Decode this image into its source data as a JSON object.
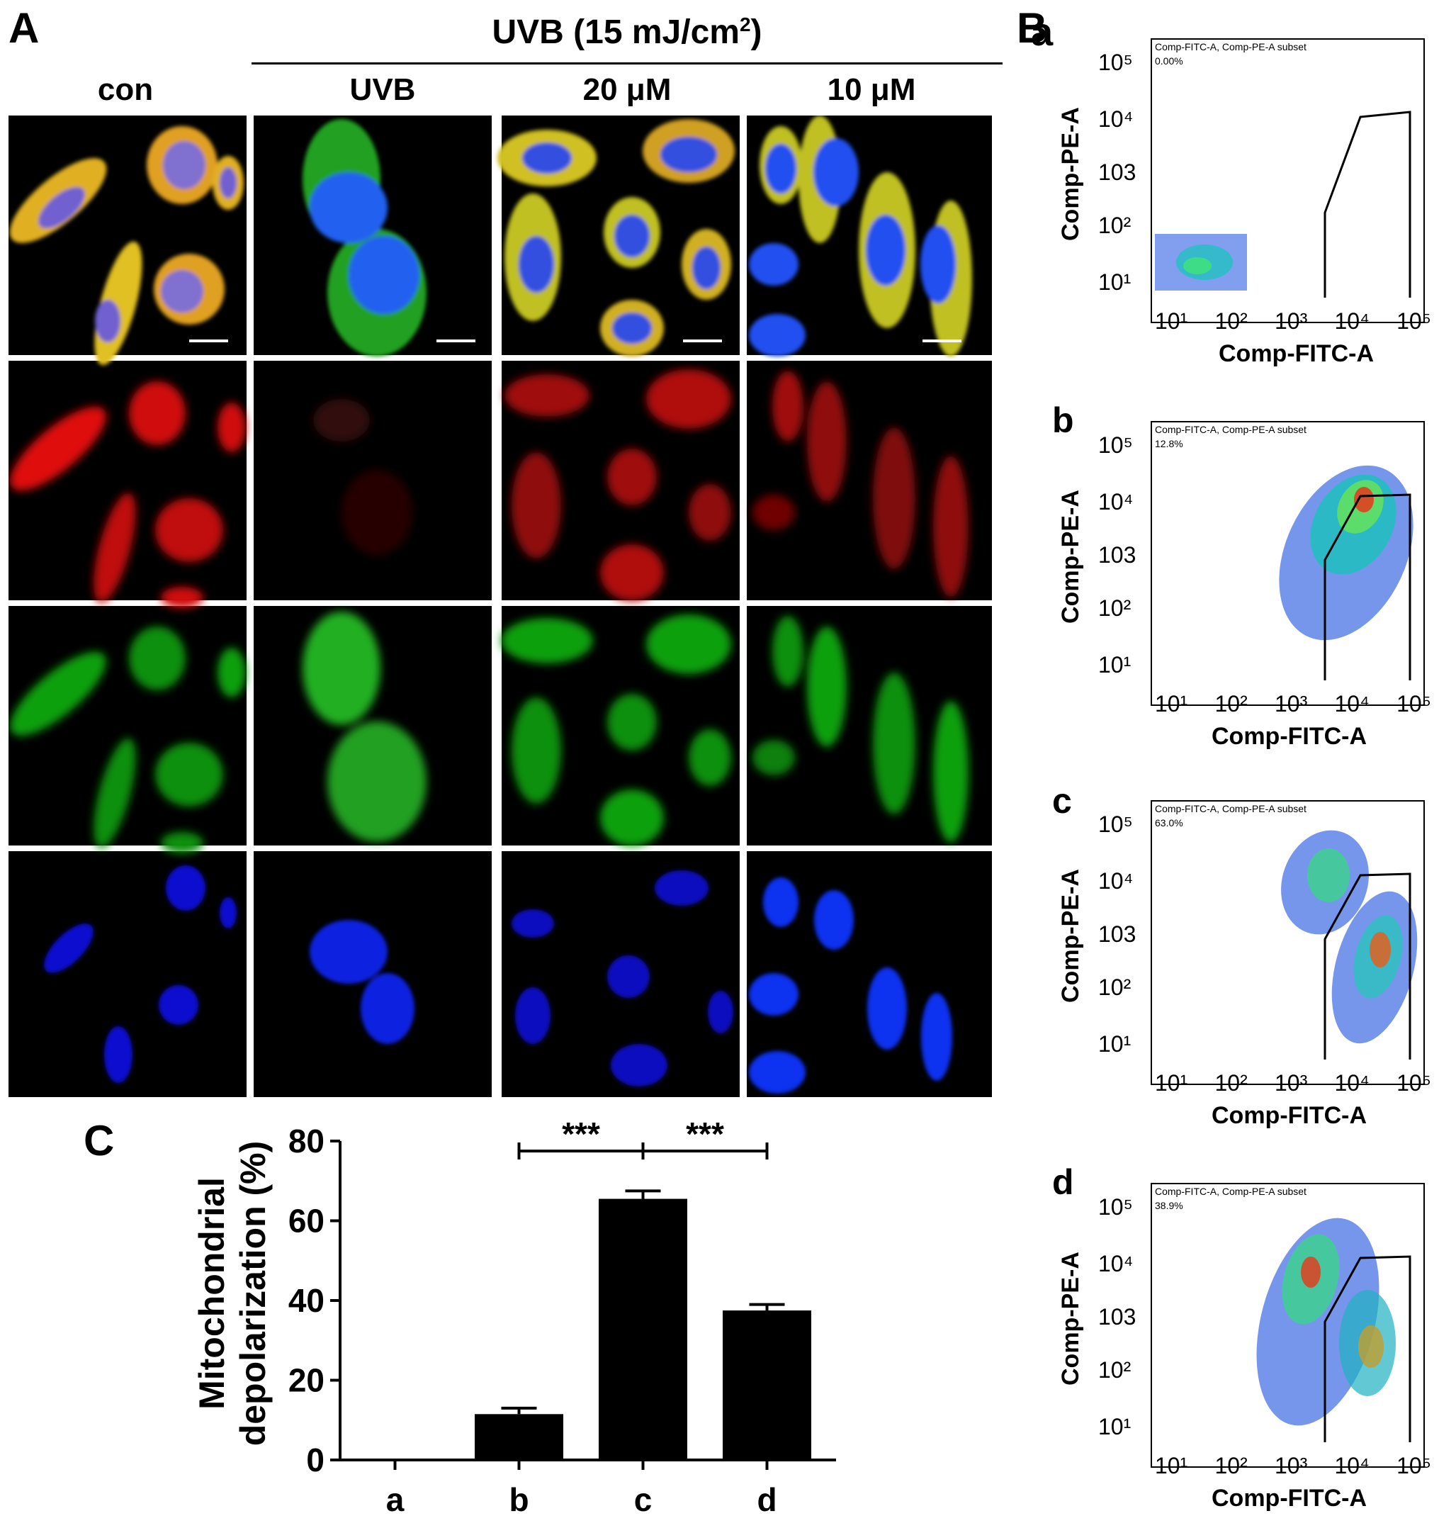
{
  "panel_A": {
    "letter": "A",
    "treatment_header": "UVB (15 mJ/cm",
    "treatment_sup": "2",
    "treatment_close": ")",
    "columns": [
      "con",
      "UVB",
      "20 μM",
      "10 μM"
    ],
    "rows": [
      "merge",
      "red",
      "green",
      "blue"
    ]
  },
  "panel_B": {
    "letter": "B",
    "plots": [
      {
        "sub": "a",
        "gate_title": "Comp-FITC-A, Comp-PE-A subset",
        "percent": "0.00%"
      },
      {
        "sub": "b",
        "gate_title": "Comp-FITC-A, Comp-PE-A subset",
        "percent": "12.8%"
      },
      {
        "sub": "c",
        "gate_title": "Comp-FITC-A, Comp-PE-A subset",
        "percent": "63.0%"
      },
      {
        "sub": "d",
        "gate_title": "Comp-FITC-A, Comp-PE-A subset",
        "percent": "38.9%"
      }
    ],
    "xlabel": "Comp-FITC-A",
    "ylabel": "Comp-PE-A",
    "ticks": [
      "10¹",
      "10²",
      "10³",
      "10⁴",
      "10⁵"
    ],
    "ytick_3": "103"
  },
  "panel_C": {
    "letter": "C",
    "chart_data": {
      "type": "bar",
      "categories": [
        "a",
        "b",
        "c",
        "d"
      ],
      "values": [
        0,
        11.5,
        65.5,
        37.5
      ],
      "errors": [
        0,
        1.5,
        2.0,
        1.5
      ],
      "ylabel_line1": "Mitochondrial",
      "ylabel_line2": "depolarization (%)",
      "ylim": [
        0,
        80
      ],
      "yticks": [
        0,
        20,
        40,
        60,
        80
      ],
      "significance": [
        {
          "from": "b",
          "to": "c",
          "label": "***"
        },
        {
          "from": "c",
          "to": "d",
          "label": "***"
        }
      ],
      "bar_color": "#000000"
    }
  }
}
